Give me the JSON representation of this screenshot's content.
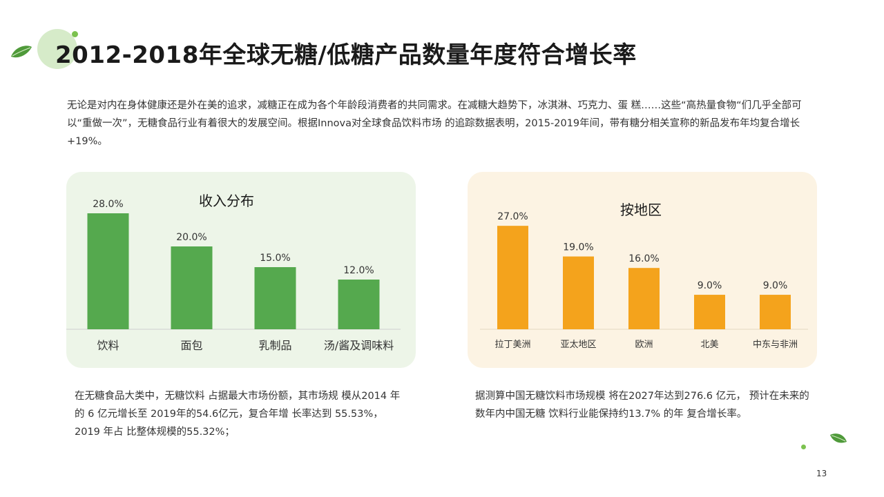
{
  "title": "2012-2018年全球无糖/低糖产品数量年度符合增长率",
  "intro": "无论是对内在身体健康还是外在美的追求，减糖正在成为各个年龄段消费者的共同需求。在减糖大趋势下，冰淇淋、巧克力、蛋 糕……这些“高热量食物“们几乎全部可以“重做一次”，无糖食品行业有着很大的发展空间。根据Innova对全球食品饮料市场 的追踪数据表明，2015-2019年间，带有糖分相关宣称的新品发布年均复合增长+19%。",
  "colors": {
    "green": "#55a94e",
    "orange": "#f4a31c",
    "green_panel": "#edf5e8",
    "orange_panel": "#fcf3e3"
  },
  "chart_data": [
    {
      "type": "bar",
      "title": "收入分布",
      "categories": [
        "饮料",
        "面包",
        "乳制品",
        "汤/酱及调味料"
      ],
      "values": [
        28.0,
        20.0,
        15.0,
        12.0
      ],
      "value_labels": [
        "28.0%",
        "20.0%",
        "15.0%",
        "12.0%"
      ],
      "ylim": [
        0,
        30
      ],
      "grid": false,
      "color": "#55a94e"
    },
    {
      "type": "bar",
      "title": "按地区",
      "categories": [
        "拉丁美洲",
        "亚太地区",
        "欧洲",
        "北美",
        "中东与非洲"
      ],
      "values": [
        27.0,
        19.0,
        16.0,
        9.0,
        9.0
      ],
      "value_labels": [
        "27.0%",
        "19.0%",
        "16.0%",
        "9.0%",
        "9.0%"
      ],
      "ylim": [
        0,
        30
      ],
      "grid": false,
      "color": "#f4a31c"
    }
  ],
  "desc_left": "在无糖食品大类中，无糖饮料 占据最大市场份额，其市场规 模从2014 年的 6 亿元增长至 2019年的54.6亿元，复合年增 长率达到 55.53%， 2019 年占 比整体规模的55.32%；",
  "desc_right": "据测算中国无糖饮料市场规模 将在2027年达到276.6 亿元， 预计在未来的数年内中国无糖 饮料行业能保持约13.7% 的年 复合增长率。",
  "page_number": "13"
}
